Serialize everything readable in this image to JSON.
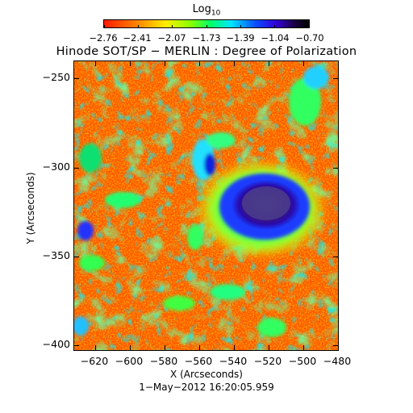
{
  "colorbar": {
    "title": "Log",
    "title_subscript": "10",
    "ticks": [
      "−2.76",
      "−2.41",
      "−2.07",
      "−1.73",
      "−1.39",
      "−1.04",
      "−0.70"
    ]
  },
  "title": "Hinode SOT/SP − MERLIN : Degree of Polarization",
  "axes": {
    "xlabel": "X (Arcseconds)",
    "ylabel": "Y (Arcseconds)",
    "xticks": [
      "−620",
      "−600",
      "−580",
      "−560",
      "−540",
      "−520",
      "−500",
      "−480"
    ],
    "yticks": [
      "−250",
      "−300",
      "−350",
      "−400"
    ]
  },
  "timestamp": "1−May−2012 16:20:05.959",
  "colors": {
    "background_field": "#ff5a00",
    "spot_core": "#3a0a7a",
    "penumbra": "#1030ff",
    "plage": "#20ff60"
  }
}
